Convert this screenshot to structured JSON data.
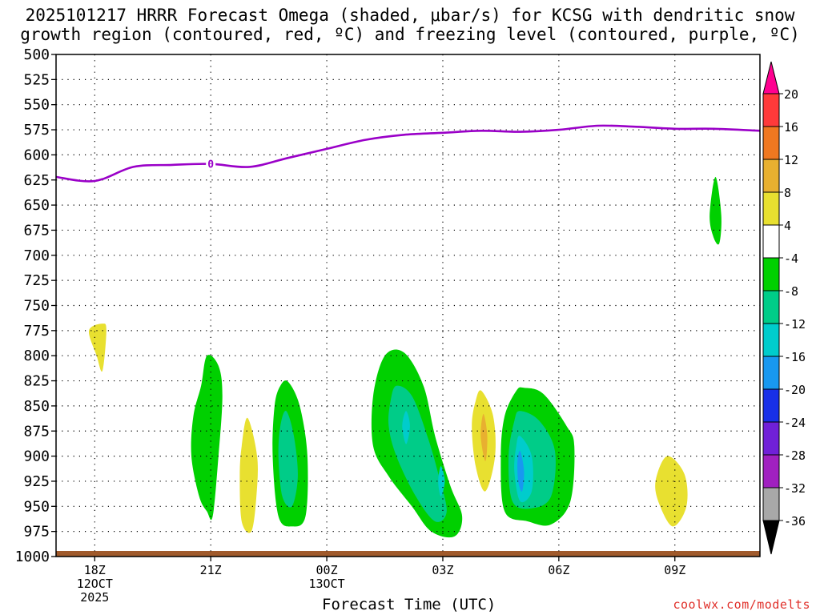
{
  "chart_data": {
    "type": "contour",
    "title_line1": "2025101217 HRRR Forecast Omega (shaded, μbar/s) for KCSG with dendritic snow",
    "title_line2": "growth region (contoured, red, ºC) and freezing level (contoured, purple, ºC)",
    "xlabel": "Forecast Time (UTC)",
    "ylabel": "",
    "credit": "coolwx.com/modelts",
    "x_range_hours": [
      -1,
      17.2
    ],
    "y_range_mb": [
      500,
      1000
    ],
    "y_ticks": [
      500,
      525,
      550,
      575,
      600,
      625,
      650,
      675,
      700,
      725,
      750,
      775,
      800,
      825,
      850,
      875,
      900,
      925,
      950,
      975,
      1000
    ],
    "x_ticks": [
      {
        "hour": 0,
        "label": "18Z",
        "sub1": "12OCT",
        "sub2": "2025"
      },
      {
        "hour": 3,
        "label": "21Z",
        "sub1": "",
        "sub2": ""
      },
      {
        "hour": 6,
        "label": "00Z",
        "sub1": "13OCT",
        "sub2": ""
      },
      {
        "hour": 9,
        "label": "03Z",
        "sub1": "",
        "sub2": ""
      },
      {
        "hour": 12,
        "label": "06Z",
        "sub1": "",
        "sub2": ""
      },
      {
        "hour": 15,
        "label": "09Z",
        "sub1": "",
        "sub2": ""
      }
    ],
    "freezing_level": {
      "label": "0",
      "color": "#9a00c8",
      "label_hour": 3.0,
      "points": [
        [
          -1,
          622
        ],
        [
          0,
          626
        ],
        [
          1,
          612
        ],
        [
          2,
          610
        ],
        [
          3,
          609
        ],
        [
          4,
          612
        ],
        [
          5,
          603
        ],
        [
          6,
          594
        ],
        [
          7,
          585
        ],
        [
          8,
          580
        ],
        [
          9,
          578
        ],
        [
          10,
          576
        ],
        [
          11,
          577
        ],
        [
          12,
          575
        ],
        [
          13,
          571
        ],
        [
          14,
          572
        ],
        [
          15,
          574
        ],
        [
          16,
          574
        ],
        [
          17.2,
          576
        ]
      ]
    },
    "colorbar": {
      "labels": [
        "20",
        "16",
        "12",
        "8",
        "4",
        "-4",
        "-8",
        "-12",
        "-16",
        "-20",
        "-24",
        "-28",
        "-32",
        "-36"
      ],
      "colors": [
        "#ff3a3a",
        "#f07820",
        "#e8b030",
        "#e8e030",
        "#ffffff",
        "#00d000",
        "#00cc88",
        "#00cccc",
        "#1898f0",
        "#1830e8",
        "#7020d8",
        "#a020c0",
        "#a8a8a8"
      ],
      "top_arrow": "#ff0090",
      "bottom_arrow": "#000000"
    },
    "omega_regions": [
      {
        "name": "omega-region-1",
        "value": 4,
        "color": "#e8e030",
        "points": [
          [
            -0.15,
            775
          ],
          [
            0.2,
            768
          ],
          [
            0.3,
            775
          ],
          [
            0.2,
            815
          ],
          [
            0.05,
            800
          ]
        ]
      },
      {
        "name": "omega-region-2",
        "value": -4,
        "color": "#00d000",
        "points": [
          [
            2.9,
            800
          ],
          [
            3.2,
            810
          ],
          [
            3.3,
            840
          ],
          [
            3.2,
            900
          ],
          [
            3.05,
            960
          ],
          [
            2.9,
            955
          ],
          [
            2.7,
            940
          ],
          [
            2.5,
            900
          ],
          [
            2.55,
            860
          ],
          [
            2.75,
            830
          ]
        ]
      },
      {
        "name": "omega-region-3",
        "value": 4,
        "color": "#e8e030",
        "points": [
          [
            3.95,
            862
          ],
          [
            4.2,
            900
          ],
          [
            4.18,
            940
          ],
          [
            4.05,
            975
          ],
          [
            3.8,
            965
          ],
          [
            3.75,
            920
          ],
          [
            3.8,
            890
          ]
        ]
      },
      {
        "name": "omega-region-4",
        "value": -4,
        "color": "#00d000",
        "points": [
          [
            5.0,
            826
          ],
          [
            5.3,
            850
          ],
          [
            5.5,
            900
          ],
          [
            5.45,
            960
          ],
          [
            5.1,
            970
          ],
          [
            4.75,
            960
          ],
          [
            4.6,
            900
          ],
          [
            4.65,
            850
          ],
          [
            4.8,
            830
          ]
        ]
      },
      {
        "name": "omega-region-5",
        "value": -8,
        "color": "#00cc88",
        "points": [
          [
            4.95,
            855
          ],
          [
            5.15,
            880
          ],
          [
            5.25,
            920
          ],
          [
            5.1,
            950
          ],
          [
            4.85,
            940
          ],
          [
            4.75,
            900
          ],
          [
            4.8,
            870
          ]
        ]
      },
      {
        "name": "omega-region-6",
        "value": -4,
        "color": "#00d000",
        "points": [
          [
            7.5,
            800
          ],
          [
            8.0,
            797
          ],
          [
            8.5,
            830
          ],
          [
            8.8,
            880
          ],
          [
            9.2,
            930
          ],
          [
            9.5,
            960
          ],
          [
            9.3,
            980
          ],
          [
            8.7,
            975
          ],
          [
            8.2,
            950
          ],
          [
            7.6,
            920
          ],
          [
            7.2,
            890
          ],
          [
            7.2,
            840
          ]
        ]
      },
      {
        "name": "omega-region-7",
        "value": -8,
        "color": "#00cc88",
        "points": [
          [
            7.8,
            830
          ],
          [
            8.2,
            840
          ],
          [
            8.6,
            880
          ],
          [
            8.9,
            920
          ],
          [
            9.1,
            955
          ],
          [
            8.8,
            965
          ],
          [
            8.3,
            940
          ],
          [
            7.8,
            900
          ],
          [
            7.6,
            870
          ],
          [
            7.65,
            845
          ]
        ]
      },
      {
        "name": "omega-region-8",
        "value": -12,
        "color": "#00cccc",
        "points": [
          [
            8.05,
            855
          ],
          [
            8.15,
            870
          ],
          [
            8.05,
            888
          ],
          [
            7.95,
            870
          ]
        ]
      },
      {
        "name": "omega-region-9",
        "value": -12,
        "color": "#00cccc",
        "points": [
          [
            8.95,
            910
          ],
          [
            9.05,
            925
          ],
          [
            8.95,
            940
          ],
          [
            8.88,
            925
          ]
        ]
      },
      {
        "name": "omega-region-10",
        "value": 4,
        "color": "#e8e030",
        "points": [
          [
            10.0,
            835
          ],
          [
            10.3,
            860
          ],
          [
            10.35,
            900
          ],
          [
            10.1,
            935
          ],
          [
            9.85,
            910
          ],
          [
            9.75,
            870
          ],
          [
            9.85,
            845
          ]
        ]
      },
      {
        "name": "omega-region-11",
        "value": 8,
        "color": "#e8b030",
        "points": [
          [
            10.05,
            858
          ],
          [
            10.15,
            880
          ],
          [
            10.1,
            905
          ],
          [
            9.98,
            880
          ]
        ]
      },
      {
        "name": "omega-region-12",
        "value": -4,
        "color": "#00d000",
        "points": [
          [
            11.1,
            832
          ],
          [
            11.6,
            838
          ],
          [
            12.2,
            870
          ],
          [
            12.4,
            890
          ],
          [
            12.3,
            945
          ],
          [
            11.8,
            968
          ],
          [
            11.2,
            965
          ],
          [
            10.6,
            955
          ],
          [
            10.5,
            900
          ],
          [
            10.6,
            860
          ],
          [
            10.9,
            835
          ]
        ]
      },
      {
        "name": "omega-region-13",
        "value": -8,
        "color": "#00cc88",
        "points": [
          [
            11.0,
            855
          ],
          [
            11.5,
            865
          ],
          [
            11.9,
            895
          ],
          [
            11.8,
            940
          ],
          [
            11.3,
            952
          ],
          [
            10.8,
            945
          ],
          [
            10.7,
            900
          ],
          [
            10.85,
            865
          ]
        ]
      },
      {
        "name": "omega-region-14",
        "value": -12,
        "color": "#00cccc",
        "points": [
          [
            11.0,
            880
          ],
          [
            11.3,
            900
          ],
          [
            11.3,
            935
          ],
          [
            11.0,
            945
          ],
          [
            10.85,
            915
          ],
          [
            10.9,
            890
          ]
        ]
      },
      {
        "name": "omega-region-15",
        "value": -16,
        "color": "#1898f0",
        "points": [
          [
            11.0,
            895
          ],
          [
            11.1,
            915
          ],
          [
            11.05,
            935
          ],
          [
            10.95,
            925
          ],
          [
            10.93,
            905
          ]
        ]
      },
      {
        "name": "omega-region-16",
        "value": 4,
        "color": "#e8e030",
        "points": [
          [
            14.8,
            900
          ],
          [
            15.25,
            918
          ],
          [
            15.3,
            950
          ],
          [
            14.95,
            970
          ],
          [
            14.6,
            948
          ],
          [
            14.5,
            925
          ]
        ]
      },
      {
        "name": "omega-region-17",
        "value": -4,
        "color": "#00d000",
        "points": [
          [
            16.05,
            622
          ],
          [
            16.2,
            660
          ],
          [
            16.15,
            688
          ],
          [
            16.0,
            682
          ],
          [
            15.9,
            660
          ]
        ]
      }
    ]
  }
}
